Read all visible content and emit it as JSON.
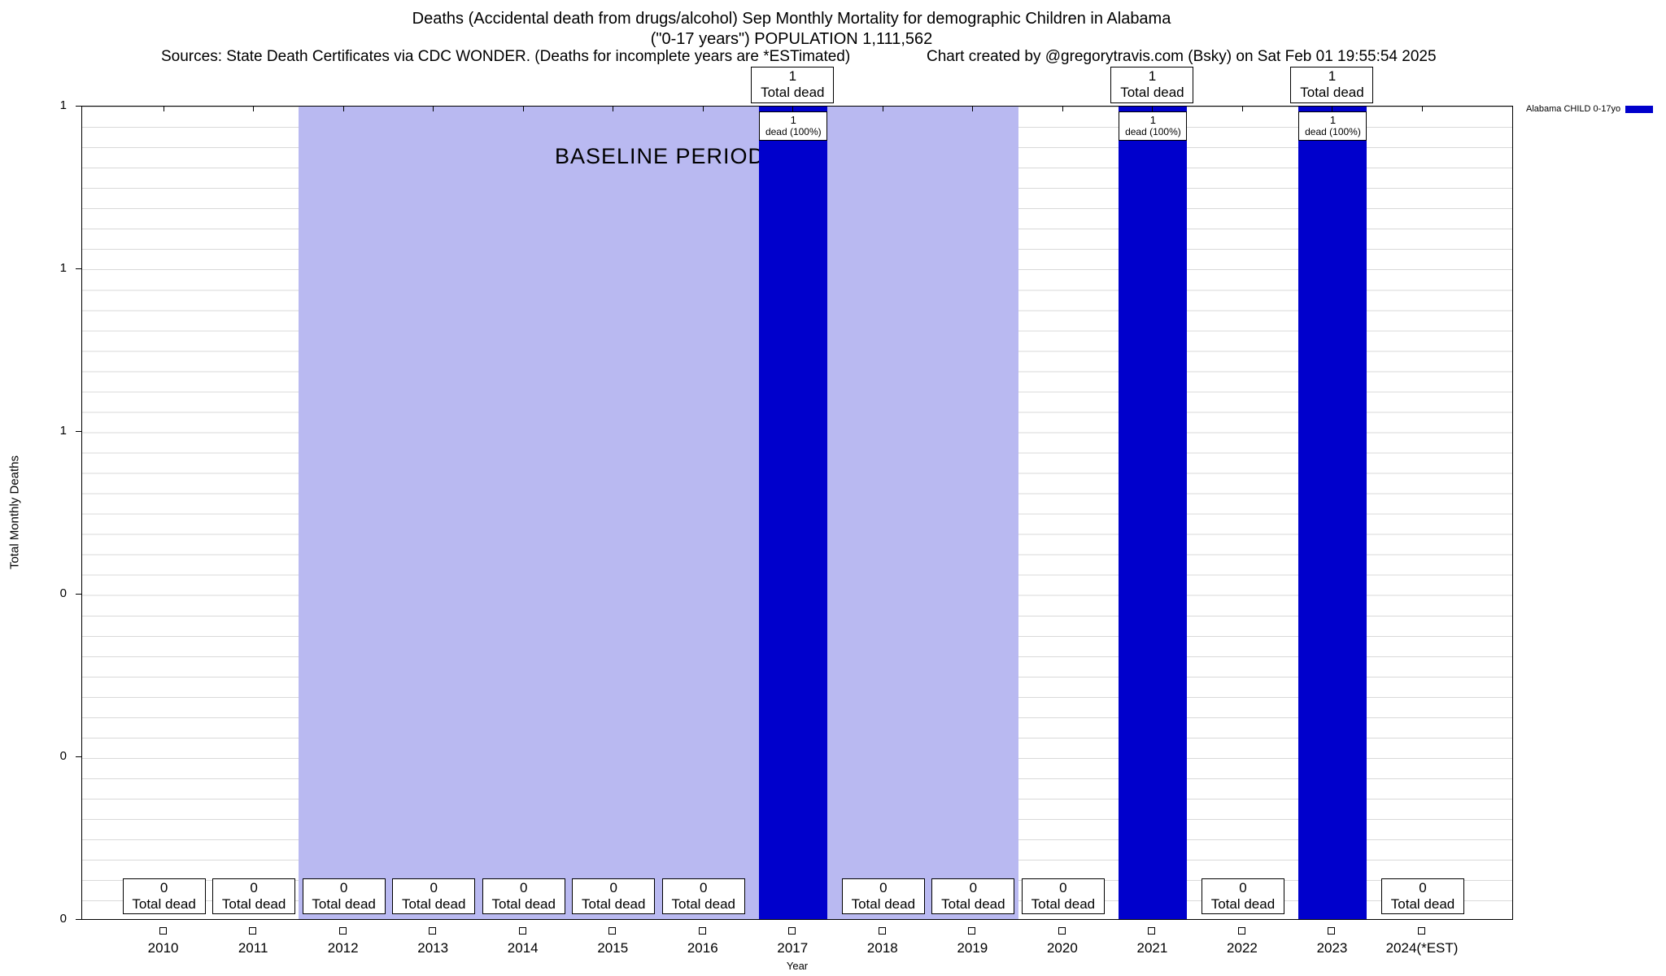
{
  "header": {
    "title_line1": "Deaths (Accidental death from drugs/alcohol) Sep Monthly Mortality for demographic Children in Alabama",
    "title_line2": "(\"0-17 years\") POPULATION 1,111,562",
    "sources": "Sources: State Death Certificates via CDC WONDER. (Deaths for incomplete years are *ESTimated)",
    "credit": "Chart created by @gregorytravis.com (Bsky) on Sat Feb 01 19:55:54 2025"
  },
  "axes": {
    "y_title": "Total Monthly Deaths",
    "x_title": "Year",
    "y_tick_labels": [
      "1",
      "1",
      "1",
      "0",
      "0",
      "0"
    ],
    "y_range": [
      0,
      1
    ]
  },
  "legend": {
    "label": "Alabama CHILD 0-17yo",
    "color": "#0000cc"
  },
  "baseline": {
    "label": "BASELINE PERIOD",
    "from_year": "2012",
    "to_year": "2019",
    "color": "#b9b9f1"
  },
  "colors": {
    "bar": "#0000cc",
    "grid": "#d9d9d9"
  },
  "chart_data": {
    "type": "bar",
    "title": "Deaths (Accidental death from drugs/alcohol) Sep Monthly Mortality for demographic Children in Alabama (\"0-17 years\") POPULATION 1,111,562",
    "xlabel": "Year",
    "ylabel": "Total Monthly Deaths",
    "ylim": [
      0,
      1
    ],
    "grid": true,
    "legend_position": "top-right",
    "series_name": "Alabama CHILD 0-17yo",
    "categories": [
      "2010",
      "2011",
      "2012",
      "2013",
      "2014",
      "2015",
      "2016",
      "2017",
      "2018",
      "2019",
      "2020",
      "2021",
      "2022",
      "2023",
      "2024(*EST)"
    ],
    "values": [
      0,
      0,
      0,
      0,
      0,
      0,
      0,
      1,
      0,
      0,
      0,
      1,
      0,
      1,
      0
    ],
    "baseline_period_years": [
      "2012",
      "2013",
      "2014",
      "2015",
      "2016",
      "2017",
      "2018",
      "2019"
    ],
    "columns": [
      {
        "label": "2010",
        "value": 0,
        "box_lines": [
          "0",
          "Total dead"
        ]
      },
      {
        "label": "2011",
        "value": 0,
        "box_lines": [
          "0",
          "Total dead"
        ]
      },
      {
        "label": "2012",
        "value": 0,
        "box_lines": [
          "0",
          "Total dead"
        ]
      },
      {
        "label": "2013",
        "value": 0,
        "box_lines": [
          "0",
          "Total dead"
        ]
      },
      {
        "label": "2014",
        "value": 0,
        "box_lines": [
          "0",
          "Total dead"
        ]
      },
      {
        "label": "2015",
        "value": 0,
        "box_lines": [
          "0",
          "Total dead"
        ]
      },
      {
        "label": "2016",
        "value": 0,
        "box_lines": [
          "0",
          "Total dead"
        ]
      },
      {
        "label": "2017",
        "value": 1,
        "above_lines": [
          "1",
          "Total dead"
        ],
        "inner_lines": [
          "1",
          "dead (100%)"
        ]
      },
      {
        "label": "2018",
        "value": 0,
        "box_lines": [
          "0",
          "Total dead"
        ]
      },
      {
        "label": "2019",
        "value": 0,
        "box_lines": [
          "0",
          "Total dead"
        ]
      },
      {
        "label": "2020",
        "value": 0,
        "box_lines": [
          "0",
          "Total dead"
        ]
      },
      {
        "label": "2021",
        "value": 1,
        "above_lines": [
          "1",
          "Total dead"
        ],
        "inner_lines": [
          "1",
          "dead (100%)"
        ]
      },
      {
        "label": "2022",
        "value": 0,
        "box_lines": [
          "0",
          "Total dead"
        ]
      },
      {
        "label": "2023",
        "value": 1,
        "above_lines": [
          "1",
          "Total dead"
        ],
        "inner_lines": [
          "1",
          "dead (100%)"
        ]
      },
      {
        "label": "2024(*EST)",
        "value": 0,
        "box_lines": [
          "0",
          "Total dead"
        ]
      }
    ]
  }
}
